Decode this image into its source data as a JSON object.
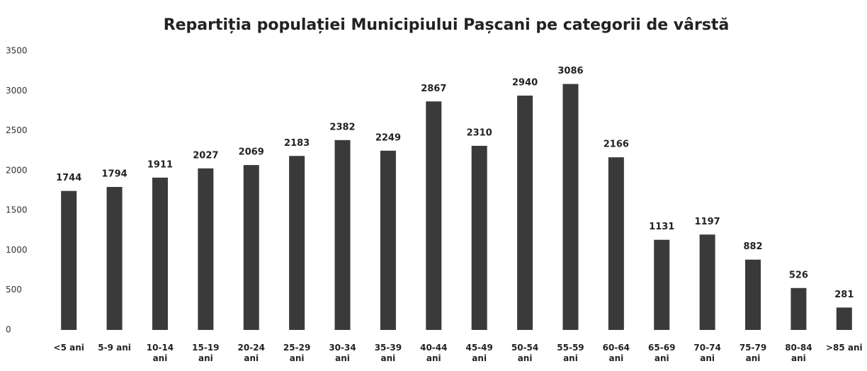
{
  "chart_data": {
    "type": "bar",
    "title": "Repartiția populației Municipiului Pașcani pe categorii de vârstă",
    "categories": [
      "<5 ani",
      "5-9 ani",
      "10-14 ani",
      "15-19 ani",
      "20-24 ani",
      "25-29 ani",
      "30-34 ani",
      "35-39 ani",
      "40-44 ani",
      "45-49 ani",
      "50-54 ani",
      "55-59 ani",
      "60-64 ani",
      "65-69 ani",
      "70-74 ani",
      "75-79 ani",
      "80-84 ani",
      ">85 ani"
    ],
    "values": [
      1744,
      1794,
      1911,
      2027,
      2069,
      2183,
      2382,
      2249,
      2867,
      2310,
      2940,
      3086,
      2166,
      1131,
      1197,
      882,
      526,
      281
    ],
    "color": "#3a3a3a",
    "ylim": [
      0,
      3500
    ],
    "yticks": [
      0,
      500,
      1000,
      1500,
      2000,
      2500,
      3000,
      3500
    ],
    "grid": false
  }
}
